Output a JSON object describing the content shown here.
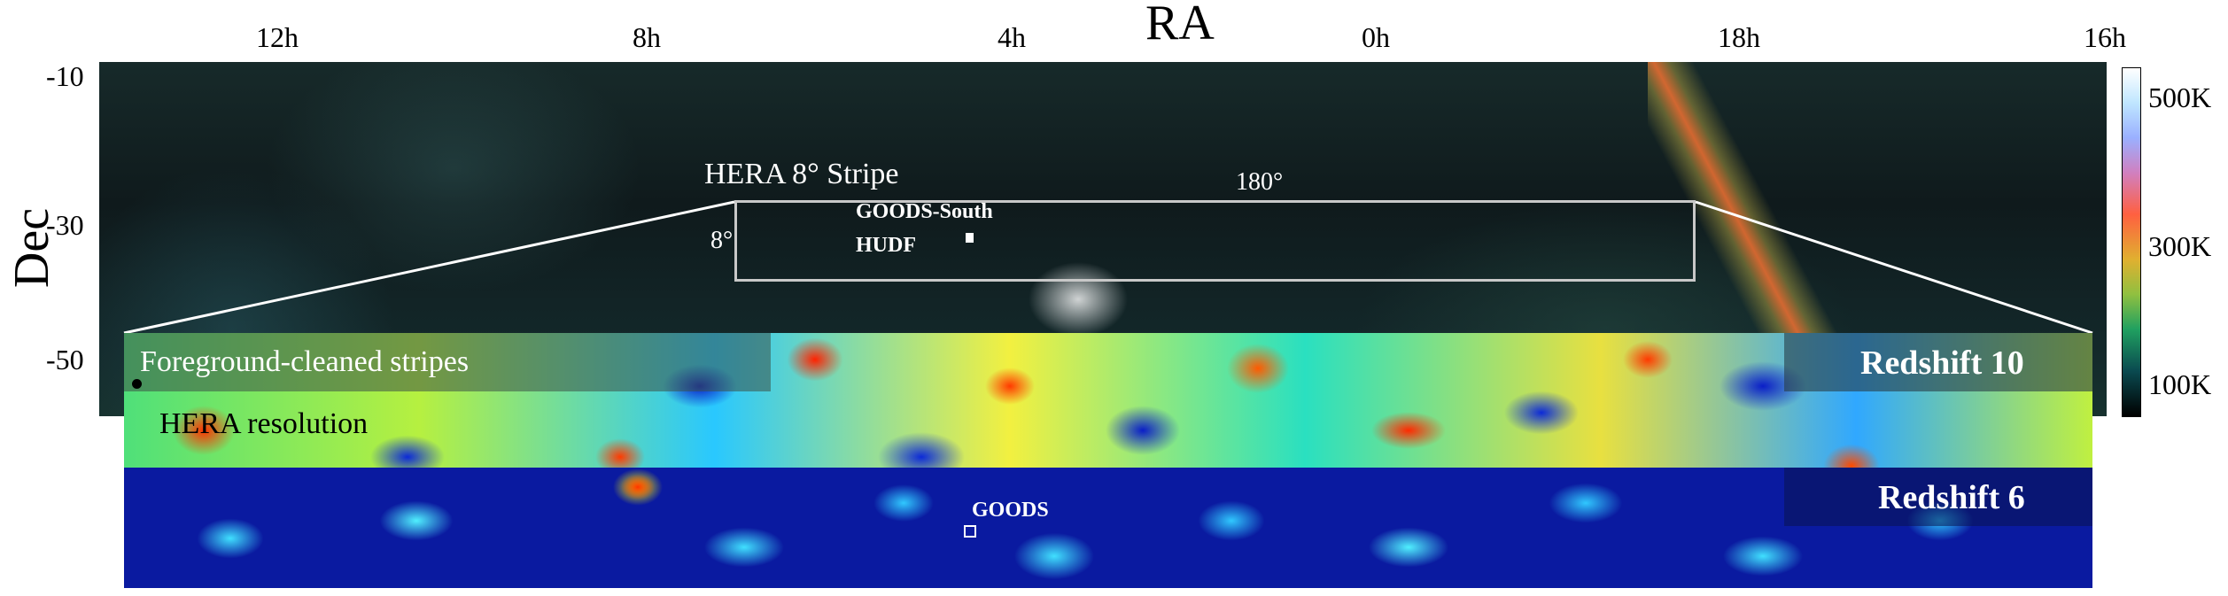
{
  "axes": {
    "ra_title": "RA",
    "dec_title": "Dec",
    "ra_ticks": [
      "12h",
      "8h",
      "4h",
      "0h",
      "18h",
      "16h"
    ],
    "dec_ticks": [
      "-10",
      "-30",
      "-50"
    ]
  },
  "sky": {
    "stripe_label": "HERA 8° Stripe",
    "width_label": "180°",
    "height_label": "8°",
    "goods_south_label": "GOODS-South",
    "hudf_label": "HUDF"
  },
  "panels": {
    "foreground_label": "Foreground-cleaned stripes",
    "resolution_label": "HERA resolution",
    "z10_label": "Redshift 10",
    "z6_label": "Redshift 6",
    "goods_label": "GOODS"
  },
  "colorbar": {
    "labels": [
      "500K",
      "300K",
      "100K"
    ],
    "colors": [
      "#ffffff",
      "#9ab0ff",
      "#ff6040",
      "#90c040",
      "#0a4a50",
      "#000000"
    ]
  }
}
